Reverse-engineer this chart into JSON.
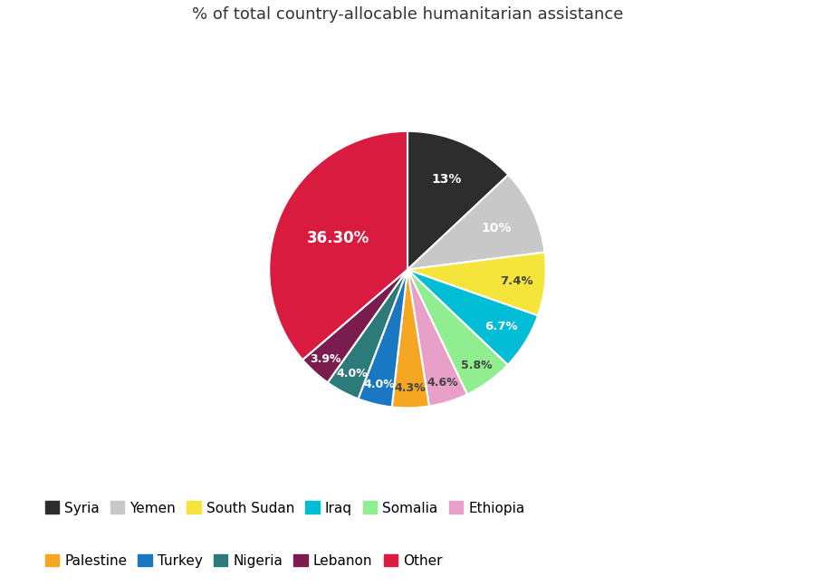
{
  "title": "% of total country-allocable humanitarian assistance",
  "slices": [
    {
      "label": "Syria",
      "value": 13.0,
      "color": "#2d2d2d",
      "text_color": "white",
      "pct_label": "13%"
    },
    {
      "label": "Yemen",
      "value": 10.0,
      "color": "#c8c8c8",
      "text_color": "white",
      "pct_label": "10%"
    },
    {
      "label": "South Sudan",
      "value": 7.4,
      "color": "#f5e53b",
      "text_color": "#444444",
      "pct_label": "7.4%"
    },
    {
      "label": "Iraq",
      "value": 6.7,
      "color": "#00bcd4",
      "text_color": "white",
      "pct_label": "6.7%"
    },
    {
      "label": "Somalia",
      "value": 5.8,
      "color": "#90ee90",
      "text_color": "#444444",
      "pct_label": "5.8%"
    },
    {
      "label": "Ethiopia",
      "value": 4.6,
      "color": "#e8a0c8",
      "text_color": "#444444",
      "pct_label": "4.6%"
    },
    {
      "label": "Palestine",
      "value": 4.3,
      "color": "#f5a623",
      "text_color": "#444444",
      "pct_label": "4.3%"
    },
    {
      "label": "Turkey",
      "value": 4.0,
      "color": "#1a78c2",
      "text_color": "white",
      "pct_label": "4.0%"
    },
    {
      "label": "Nigeria",
      "value": 4.0,
      "color": "#2d7a7a",
      "text_color": "white",
      "pct_label": "4.0%"
    },
    {
      "label": "Lebanon",
      "value": 3.9,
      "color": "#7b1c4e",
      "text_color": "white",
      "pct_label": "3.9%"
    },
    {
      "label": "Other",
      "value": 36.3,
      "color": "#d81b3f",
      "text_color": "white",
      "pct_label": "36.30%"
    }
  ],
  "legend_row1": [
    "Syria",
    "Yemen",
    "South Sudan",
    "Iraq",
    "Somalia",
    "Ethiopia"
  ],
  "legend_row2": [
    "Palestine",
    "Turkey",
    "Nigeria",
    "Lebanon",
    "Other"
  ],
  "background_color": "#ffffff",
  "title_fontsize": 13,
  "legend_fontsize": 11
}
